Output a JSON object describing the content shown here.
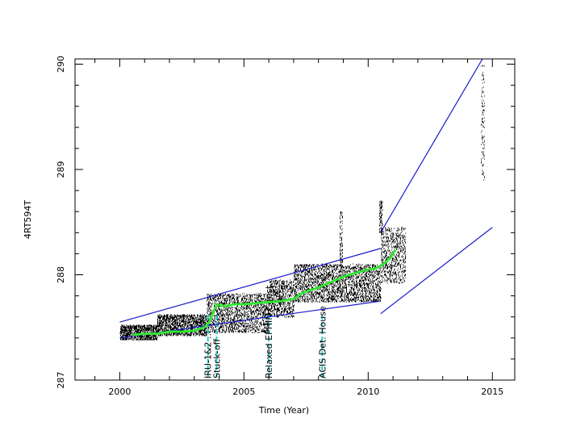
{
  "chart_data": {
    "type": "scatter",
    "xlabel": "Time (Year)",
    "ylabel": "4RT594T",
    "xlim": [
      1998.2,
      2015.9
    ],
    "ylim": [
      287.0,
      290.05
    ],
    "x_ticks": [
      2000,
      2005,
      2010,
      2015
    ],
    "y_ticks": [
      287,
      288,
      289,
      290
    ],
    "y_tick_labels": [
      "287",
      "288",
      "289",
      "290"
    ],
    "events": [
      {
        "x": 2003.55,
        "label": "IRU-1&2 ..."
      },
      {
        "x": 2003.9,
        "label": "Stuck-off"
      },
      {
        "x": 2006.0,
        "label": "Relaxed EPHIN Const."
      },
      {
        "x": 2008.15,
        "label": "ACIS Det. House"
      }
    ],
    "trend": {
      "x": [
        2000.5,
        2001.0,
        2001.5,
        2002.0,
        2002.5,
        2003.0,
        2003.4,
        2003.6,
        2003.9,
        2004.2,
        2004.6,
        2005.0,
        2005.5,
        2006.0,
        2006.5,
        2007.0,
        2007.3,
        2007.6,
        2007.9,
        2008.2,
        2008.5,
        2008.8,
        2009.1,
        2009.4,
        2009.7,
        2010.0,
        2010.3,
        2010.6,
        2010.9,
        2011.1
      ],
      "y": [
        287.43,
        287.44,
        287.44,
        287.46,
        287.46,
        287.47,
        287.5,
        287.55,
        287.72,
        287.7,
        287.72,
        287.72,
        287.73,
        287.74,
        287.75,
        287.77,
        287.82,
        287.85,
        287.87,
        287.9,
        287.93,
        287.96,
        287.99,
        288.01,
        288.03,
        288.05,
        288.06,
        288.1,
        288.16,
        288.24
      ]
    },
    "envelope_lines": [
      {
        "x": [
          2000.0,
          2010.5
        ],
        "y": [
          287.55,
          288.25
        ]
      },
      {
        "x": [
          2000.0,
          2010.5
        ],
        "y": [
          287.4,
          287.75
        ]
      },
      {
        "x": [
          2010.5,
          2014.6
        ],
        "y": [
          288.4,
          290.05
        ]
      },
      {
        "x": [
          2010.5,
          2015.0
        ],
        "y": [
          287.63,
          288.45
        ]
      }
    ],
    "scatter_segments": [
      {
        "x": [
          2000.0,
          2001.5
        ],
        "y": [
          287.38,
          287.52
        ]
      },
      {
        "x": [
          2001.5,
          2003.5
        ],
        "y": [
          287.42,
          287.62
        ]
      },
      {
        "x": [
          2003.5,
          2006.0
        ],
        "y": [
          287.45,
          287.82
        ]
      },
      {
        "x": [
          2006.0,
          2007.0
        ],
        "y": [
          287.6,
          287.95
        ]
      },
      {
        "x": [
          2007.0,
          2010.5
        ],
        "y": [
          287.74,
          288.1
        ]
      },
      {
        "x": [
          2010.5,
          2011.5
        ],
        "y": [
          287.92,
          288.45
        ]
      }
    ],
    "scatter_extras": [
      {
        "x": 2014.6,
        "y_range": [
          288.9,
          290.0
        ]
      },
      {
        "x": 2010.5,
        "y_range": [
          288.4,
          288.7
        ]
      },
      {
        "x": 2008.9,
        "y_range": [
          288.05,
          288.6
        ]
      }
    ],
    "colors": {
      "scatter": "#000000",
      "trend": "#33e533",
      "envelope": "#1a1acc",
      "event": "#22cccc",
      "axes": "#000000"
    }
  }
}
